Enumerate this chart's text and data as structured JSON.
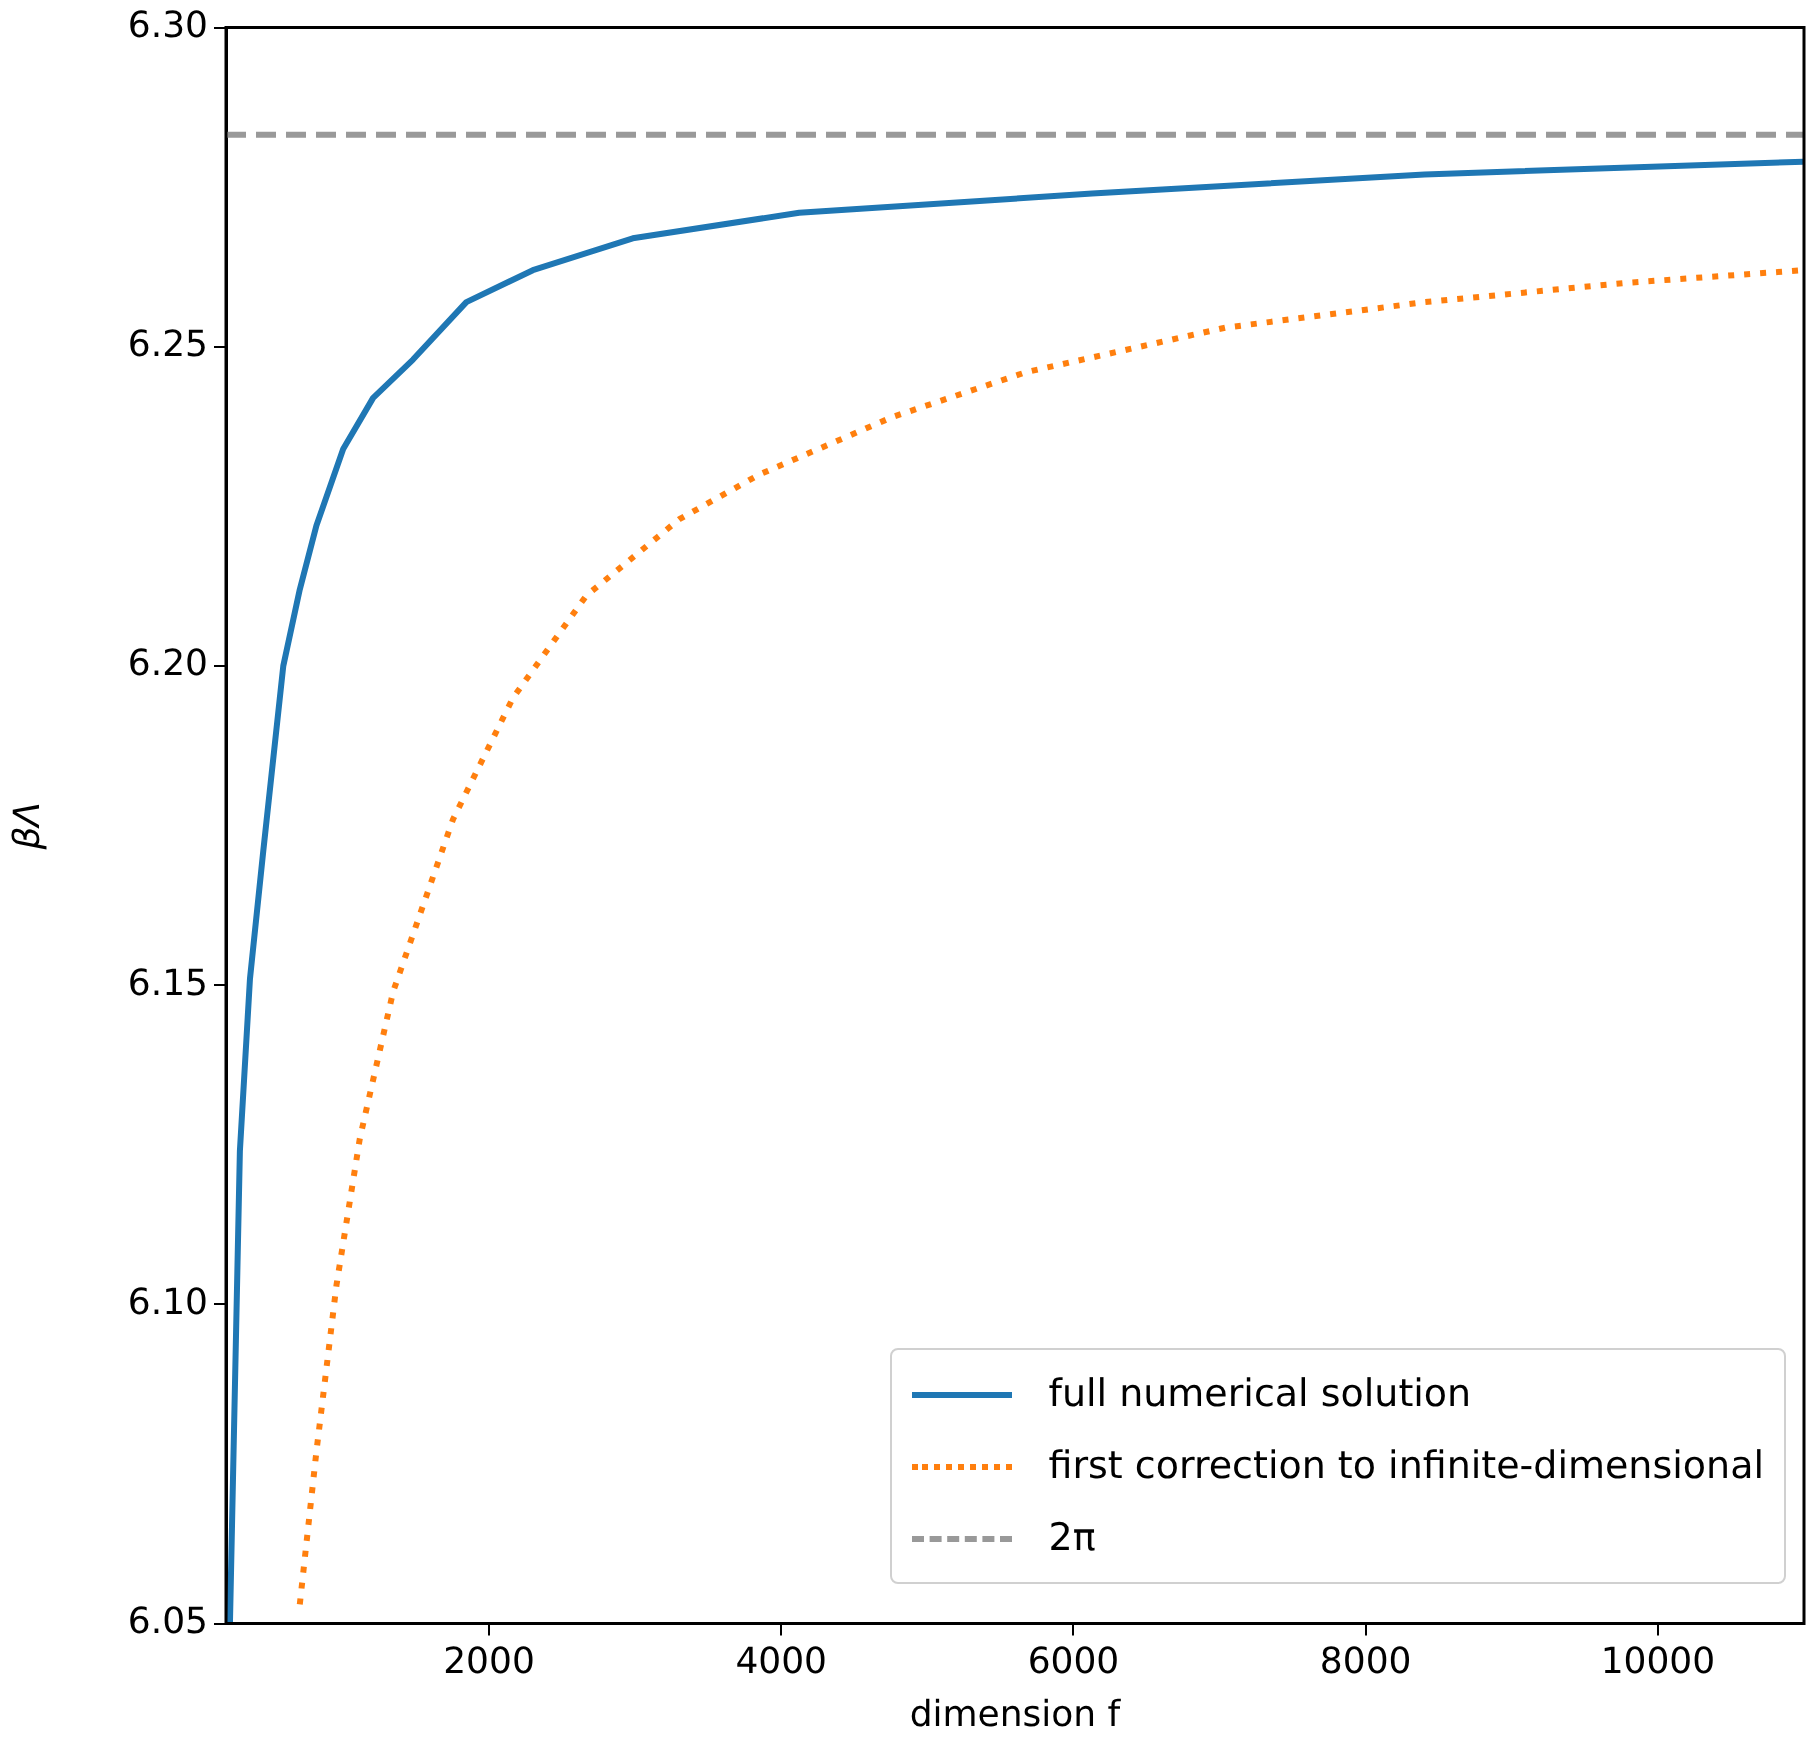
{
  "chart_data": {
    "type": "line",
    "xlabel": "dimension f",
    "ylabel": "βΛ",
    "xlim": [
      200,
      11000
    ],
    "xticks": [
      2000,
      4000,
      6000,
      8000,
      10000
    ],
    "ylim": [
      6.05,
      6.3
    ],
    "yticks": [
      {
        "value": 6.05,
        "label": "6.05"
      },
      {
        "value": 6.1,
        "label": "6.10"
      },
      {
        "value": 6.15,
        "label": "6.15"
      },
      {
        "value": 6.2,
        "label": "6.20"
      },
      {
        "value": 6.25,
        "label": "6.25"
      },
      {
        "value": 6.3,
        "label": "6.30"
      }
    ],
    "grid": false,
    "legend": "bottom right",
    "marker": "none",
    "series": [
      {
        "name": "full numerical solution",
        "color": "#1f77b4",
        "line_style": "solid",
        "x": [
          227,
          295,
          364,
          455,
          592,
          705,
          819,
          1002,
          1207,
          1480,
          1845,
          2300,
          2984,
          4123,
          6128,
          8403,
          10995
        ],
        "values": [
          6.05,
          6.124,
          6.151,
          6.171,
          6.2,
          6.212,
          6.222,
          6.234,
          6.242,
          6.248,
          6.257,
          6.262,
          6.267,
          6.271,
          6.274,
          6.277,
          6.279
        ]
      },
      {
        "name": "first correction to infinite-dimensional",
        "color": "#ff7f0e",
        "line_style": "dotted",
        "x": [
          705,
          819,
          956,
          1116,
          1344,
          1754,
          2164,
          2665,
          3303,
          3851,
          4761,
          5672,
          7039,
          8406,
          9773,
          10995
        ],
        "values": [
          6.053,
          6.077,
          6.103,
          6.126,
          6.149,
          6.176,
          6.195,
          6.211,
          6.223,
          6.23,
          6.239,
          6.246,
          6.253,
          6.257,
          6.26,
          6.262
        ]
      }
    ],
    "ref_lines": [
      {
        "axis": "y",
        "value": 6.2832,
        "label": "2π",
        "color": "#999999",
        "line_style": "dashed"
      }
    ]
  }
}
